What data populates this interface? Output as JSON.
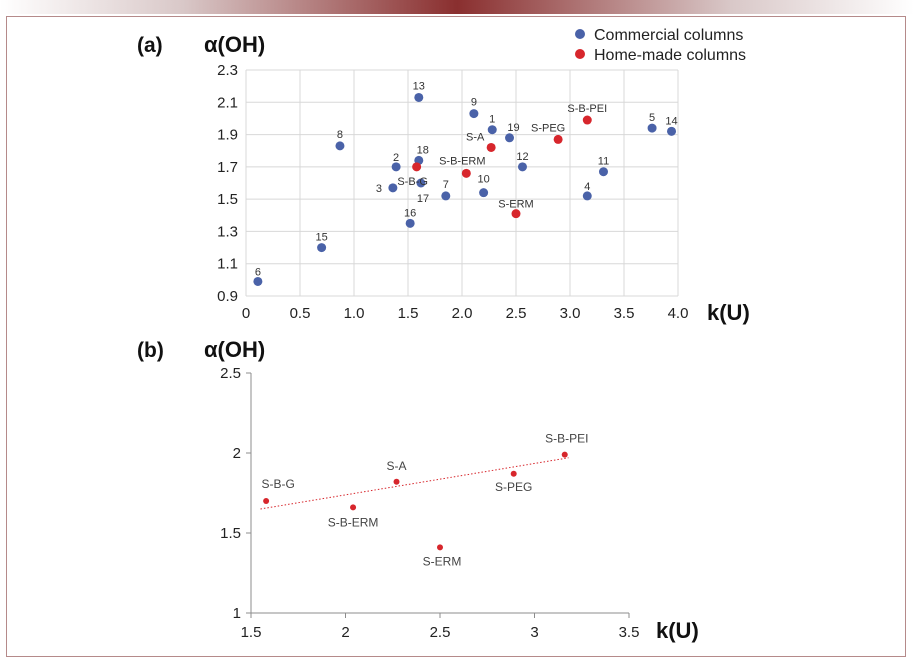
{
  "colors": {
    "commercial": "#4a62a8",
    "homemade": "#d7262c",
    "grid": "#d8d8d8",
    "axis": "#8c8c8c",
    "trend": "#d7262c"
  },
  "chart_data": [
    {
      "type": "scatter",
      "panel_label": "(a)",
      "ylabel": "α(OH)",
      "xlabel": "k(U)",
      "xlim": [
        0,
        4.0
      ],
      "ylim": [
        0.9,
        2.3
      ],
      "xticks": [
        0,
        0.5,
        1.0,
        1.5,
        2.0,
        2.5,
        3.0,
        3.5,
        4.0
      ],
      "xtick_labels": [
        "0",
        "0.5",
        "1.0",
        "1.5",
        "2.0",
        "2.5",
        "3.0",
        "3.5",
        "4.0"
      ],
      "yticks": [
        0.9,
        1.1,
        1.3,
        1.5,
        1.7,
        1.9,
        2.1,
        2.3
      ],
      "ytick_labels": [
        "0.9",
        "1.1",
        "1.3",
        "1.5",
        "1.7",
        "1.9",
        "2.1",
        "2.3"
      ],
      "grid": true,
      "legend_position": "top-right",
      "series": [
        {
          "name": "Commercial columns",
          "points": [
            {
              "label": "1",
              "x": 2.28,
              "y": 1.93
            },
            {
              "label": "2",
              "x": 1.39,
              "y": 1.7
            },
            {
              "label": "3",
              "x": 1.36,
              "y": 1.57
            },
            {
              "label": "4",
              "x": 3.16,
              "y": 1.52
            },
            {
              "label": "5",
              "x": 3.76,
              "y": 1.94
            },
            {
              "label": "6",
              "x": 0.11,
              "y": 0.99
            },
            {
              "label": "7",
              "x": 1.85,
              "y": 1.52
            },
            {
              "label": "8",
              "x": 0.87,
              "y": 1.83
            },
            {
              "label": "9",
              "x": 2.11,
              "y": 2.03
            },
            {
              "label": "10",
              "x": 2.2,
              "y": 1.54
            },
            {
              "label": "11",
              "x": 3.31,
              "y": 1.67
            },
            {
              "label": "12",
              "x": 2.56,
              "y": 1.7
            },
            {
              "label": "13",
              "x": 1.6,
              "y": 2.13
            },
            {
              "label": "14",
              "x": 3.94,
              "y": 1.92
            },
            {
              "label": "15",
              "x": 0.7,
              "y": 1.2
            },
            {
              "label": "16",
              "x": 1.52,
              "y": 1.35
            },
            {
              "label": "17",
              "x": 1.62,
              "y": 1.6
            },
            {
              "label": "18",
              "x": 1.6,
              "y": 1.74
            },
            {
              "label": "19",
              "x": 2.44,
              "y": 1.88
            }
          ]
        },
        {
          "name": "Home-made columns",
          "points": [
            {
              "label": "S-B-PEI",
              "x": 3.16,
              "y": 1.99
            },
            {
              "label": "S-PEG",
              "x": 2.89,
              "y": 1.87
            },
            {
              "label": "S-A",
              "x": 2.27,
              "y": 1.82
            },
            {
              "label": "S-B-ERM",
              "x": 2.04,
              "y": 1.66
            },
            {
              "label": "S-B-G",
              "x": 1.58,
              "y": 1.7
            },
            {
              "label": "S-ERM",
              "x": 2.5,
              "y": 1.41
            }
          ]
        }
      ]
    },
    {
      "type": "scatter",
      "panel_label": "(b)",
      "ylabel": "α(OH)",
      "xlabel": "k(U)",
      "xlim": [
        1.5,
        3.5
      ],
      "ylim": [
        1,
        2.5
      ],
      "xticks": [
        1.5,
        2,
        2.5,
        3,
        3.5
      ],
      "xtick_labels": [
        "1.5",
        "2",
        "2.5",
        "3",
        "3.5"
      ],
      "yticks": [
        1,
        1.5,
        2,
        2.5
      ],
      "ytick_labels": [
        "1",
        "1.5",
        "2",
        "2.5"
      ],
      "grid": false,
      "trendline": {
        "style": "dotted",
        "x_start": 1.55,
        "y_start": 1.65,
        "x_end": 3.18,
        "y_end": 1.97
      },
      "series": [
        {
          "name": "Home-made columns",
          "points": [
            {
              "label": "S-B-PEI",
              "x": 3.16,
              "y": 1.99
            },
            {
              "label": "S-PEG",
              "x": 2.89,
              "y": 1.87
            },
            {
              "label": "S-A",
              "x": 2.27,
              "y": 1.82
            },
            {
              "label": "S-B-ERM",
              "x": 2.04,
              "y": 1.66
            },
            {
              "label": "S-B-G",
              "x": 1.58,
              "y": 1.7
            },
            {
              "label": "S-ERM",
              "x": 2.5,
              "y": 1.41
            }
          ]
        }
      ]
    }
  ]
}
